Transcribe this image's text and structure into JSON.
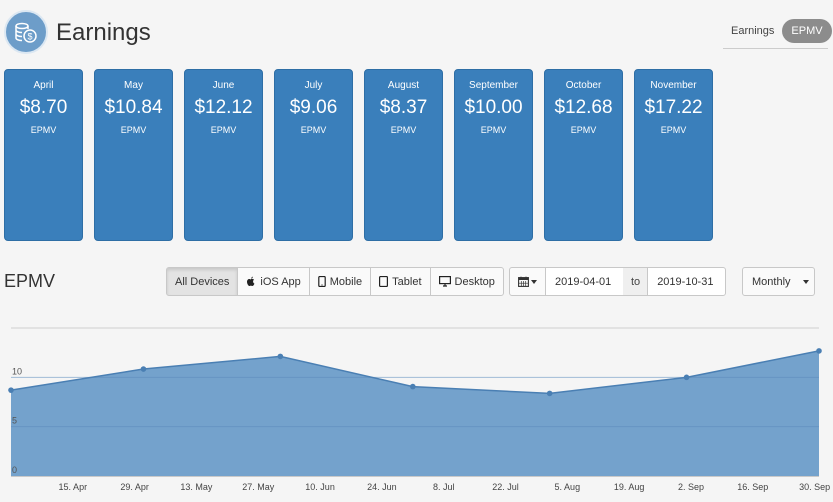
{
  "header": {
    "title": "Earnings",
    "toggle": {
      "earnings_label": "Earnings",
      "epmv_label": "EPMV"
    }
  },
  "cards": [
    {
      "month": "April",
      "value": "$8.70",
      "unit": "EPMV"
    },
    {
      "month": "May",
      "value": "$10.84",
      "unit": "EPMV"
    },
    {
      "month": "June",
      "value": "$12.12",
      "unit": "EPMV"
    },
    {
      "month": "July",
      "value": "$9.06",
      "unit": "EPMV"
    },
    {
      "month": "August",
      "value": "$8.37",
      "unit": "EPMV"
    },
    {
      "month": "September",
      "value": "$10.00",
      "unit": "EPMV"
    },
    {
      "month": "October",
      "value": "$12.68",
      "unit": "EPMV"
    },
    {
      "month": "November",
      "value": "$17.22",
      "unit": "EPMV"
    }
  ],
  "section": {
    "title": "EPMV"
  },
  "devices": {
    "all": "All Devices",
    "ios": "iOS App",
    "mobile": "Mobile",
    "tablet": "Tablet",
    "desktop": "Desktop",
    "selected": "All Devices"
  },
  "daterange": {
    "from": "2019-04-01",
    "separator": "to",
    "to": "2019-10-31"
  },
  "period": {
    "selected": "Monthly"
  },
  "colors": {
    "card": "#3a7fbb",
    "area_fill": "#6d9dc9",
    "line": "#4a7fb3"
  },
  "icons": {
    "logo": "coins-dollar-icon",
    "calendar": "calendar-icon",
    "apple": "apple-icon",
    "mobile": "mobile-icon",
    "tablet": "tablet-icon",
    "desktop": "desktop-icon"
  },
  "chart_data": {
    "type": "area",
    "x_tick_labels": [
      "15. Apr",
      "29. Apr",
      "13. May",
      "27. May",
      "10. Jun",
      "24. Jun",
      "8. Jul",
      "22. Jul",
      "5. Aug",
      "19. Aug",
      "2. Sep",
      "16. Sep",
      "30. Sep"
    ],
    "y_tick_labels": [
      "0",
      "5",
      "10"
    ],
    "ylim": [
      0,
      15
    ],
    "x_range": [
      "2019-04-01",
      "2019-10-01"
    ],
    "points": [
      {
        "x": "2019-04-01",
        "y": 8.7
      },
      {
        "x": "2019-05-01",
        "y": 10.84
      },
      {
        "x": "2019-06-01",
        "y": 12.12
      },
      {
        "x": "2019-07-01",
        "y": 9.06
      },
      {
        "x": "2019-08-01",
        "y": 8.37
      },
      {
        "x": "2019-09-01",
        "y": 10.0
      },
      {
        "x": "2019-10-01",
        "y": 12.68
      }
    ],
    "grid": true,
    "legend": "none"
  }
}
